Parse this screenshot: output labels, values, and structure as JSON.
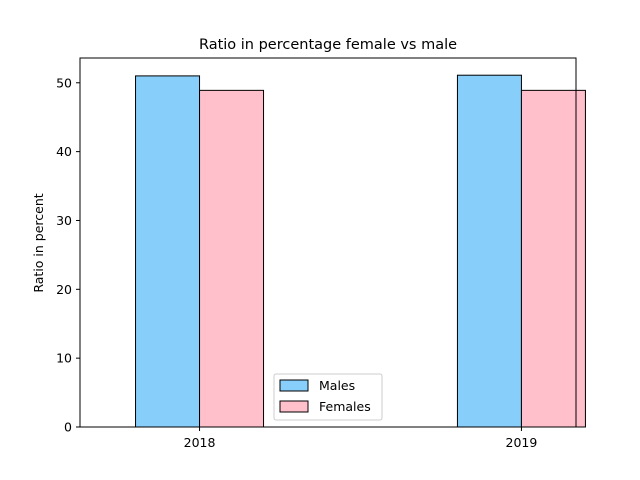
{
  "chart_data": {
    "type": "bar",
    "title": "Ratio in percentage female vs male",
    "xlabel": "",
    "ylabel": "Ratio in percent",
    "categories": [
      "2018",
      "2019"
    ],
    "series": [
      {
        "name": "Males",
        "values": [
          51.0,
          51.1
        ],
        "color": "#87CEFA"
      },
      {
        "name": "Females",
        "values": [
          48.9,
          48.9
        ],
        "color": "#FFC0CB"
      }
    ],
    "ylim": [
      0,
      53.6
    ],
    "yticks": [
      0,
      10,
      20,
      30,
      40,
      50
    ],
    "grid": false,
    "legend_position": "lower center"
  }
}
